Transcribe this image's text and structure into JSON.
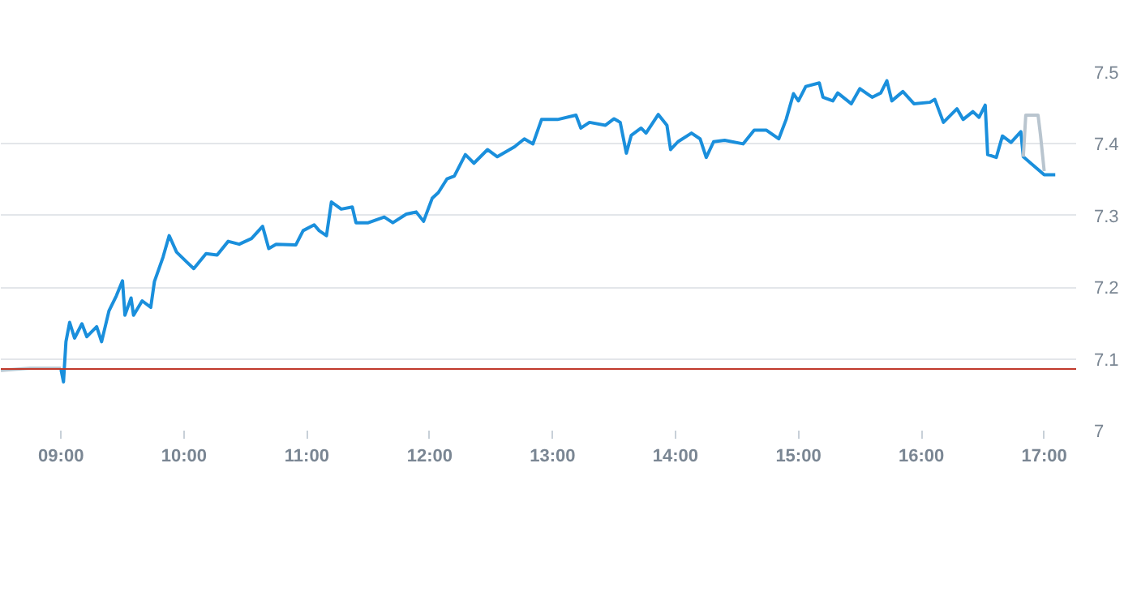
{
  "chart_data": {
    "type": "line",
    "xlim": [
      8.51,
      17.26
    ],
    "ylim": [
      7,
      7.5
    ],
    "xticks": [
      {
        "value": 9,
        "label": "09:00"
      },
      {
        "value": 10,
        "label": "10:00"
      },
      {
        "value": 11,
        "label": "11:00"
      },
      {
        "value": 12,
        "label": "12:00"
      },
      {
        "value": 13,
        "label": "13:00"
      },
      {
        "value": 14,
        "label": "14:00"
      },
      {
        "value": 15,
        "label": "15:00"
      },
      {
        "value": 16,
        "label": "16:00"
      },
      {
        "value": 17,
        "label": "17:00"
      }
    ],
    "yticks": [
      7,
      7.1,
      7.2,
      7.3,
      7.4,
      7.5
    ],
    "grid": "y",
    "line_style": "solid",
    "marker": "none",
    "ref_lines": [
      {
        "axis": "y",
        "value": 7.086,
        "label": null,
        "color": "#c0392b"
      }
    ],
    "series": [
      {
        "color": "#b9c5cf",
        "x": [
          8.51,
          8.75,
          9.0
        ],
        "values": [
          7.084,
          7.087,
          7.087
        ]
      },
      {
        "color": "#1a8fdc",
        "x": [
          9.0,
          9.02,
          9.04,
          9.07,
          9.11,
          9.17,
          9.21,
          9.29,
          9.33,
          9.39,
          9.45,
          9.5,
          9.52,
          9.57,
          9.59,
          9.66,
          9.73,
          9.76,
          9.83,
          9.88,
          9.94,
          10.03,
          10.08,
          10.18,
          10.27,
          10.36,
          10.45,
          10.55,
          10.64,
          10.69,
          10.75,
          10.91,
          10.97,
          11.06,
          11.1,
          11.16,
          11.2,
          11.28,
          11.37,
          11.4,
          11.5,
          11.63,
          11.7,
          11.81,
          11.89,
          11.95,
          12.02,
          12.07,
          12.14,
          12.2,
          12.29,
          12.36,
          12.47,
          12.55,
          12.69,
          12.77,
          12.84,
          12.91,
          13.04,
          13.19,
          13.23,
          13.3,
          13.43,
          13.5,
          13.55,
          13.6,
          13.64,
          13.72,
          13.76,
          13.86,
          13.93,
          13.96,
          14.02,
          14.13,
          14.2,
          14.25,
          14.31,
          14.4,
          14.55,
          14.64,
          14.74,
          14.84,
          14.9,
          14.96,
          15.0,
          15.06,
          15.17,
          15.2,
          15.28,
          15.32,
          15.43,
          15.5,
          15.6,
          15.67,
          15.72,
          15.76,
          15.85,
          15.94,
          16.07,
          16.11,
          16.18,
          16.29,
          16.34,
          16.42,
          16.47,
          16.52,
          16.54,
          16.61,
          16.66,
          16.73,
          16.81,
          16.83,
          17.0,
          17.09
        ],
        "values": [
          7.085,
          7.068,
          7.124,
          7.151,
          7.129,
          7.149,
          7.131,
          7.145,
          7.124,
          7.167,
          7.188,
          7.209,
          7.161,
          7.185,
          7.161,
          7.181,
          7.172,
          7.208,
          7.242,
          7.272,
          7.249,
          7.234,
          7.226,
          7.247,
          7.245,
          7.264,
          7.26,
          7.268,
          7.285,
          7.254,
          7.26,
          7.259,
          7.279,
          7.287,
          7.279,
          7.272,
          7.319,
          7.309,
          7.312,
          7.29,
          7.29,
          7.298,
          7.29,
          7.302,
          7.305,
          7.292,
          7.324,
          7.332,
          7.351,
          7.355,
          7.385,
          7.373,
          7.392,
          7.382,
          7.396,
          7.407,
          7.4,
          7.434,
          7.434,
          7.44,
          7.422,
          7.43,
          7.426,
          7.435,
          7.43,
          7.387,
          7.412,
          7.422,
          7.415,
          7.441,
          7.426,
          7.392,
          7.403,
          7.415,
          7.407,
          7.381,
          7.403,
          7.405,
          7.4,
          7.419,
          7.419,
          7.407,
          7.434,
          7.47,
          7.46,
          7.48,
          7.485,
          7.465,
          7.46,
          7.471,
          7.456,
          7.477,
          7.465,
          7.471,
          7.488,
          7.46,
          7.473,
          7.456,
          7.458,
          7.462,
          7.43,
          7.449,
          7.434,
          7.445,
          7.437,
          7.454,
          7.385,
          7.381,
          7.411,
          7.402,
          7.417,
          7.382,
          7.357,
          7.357
        ]
      },
      {
        "color": "#b9c5cf",
        "x": [
          16.83,
          16.85,
          16.95,
          16.97,
          17.0
        ],
        "values": [
          7.382,
          7.44,
          7.44,
          7.412,
          7.362
        ]
      }
    ]
  }
}
